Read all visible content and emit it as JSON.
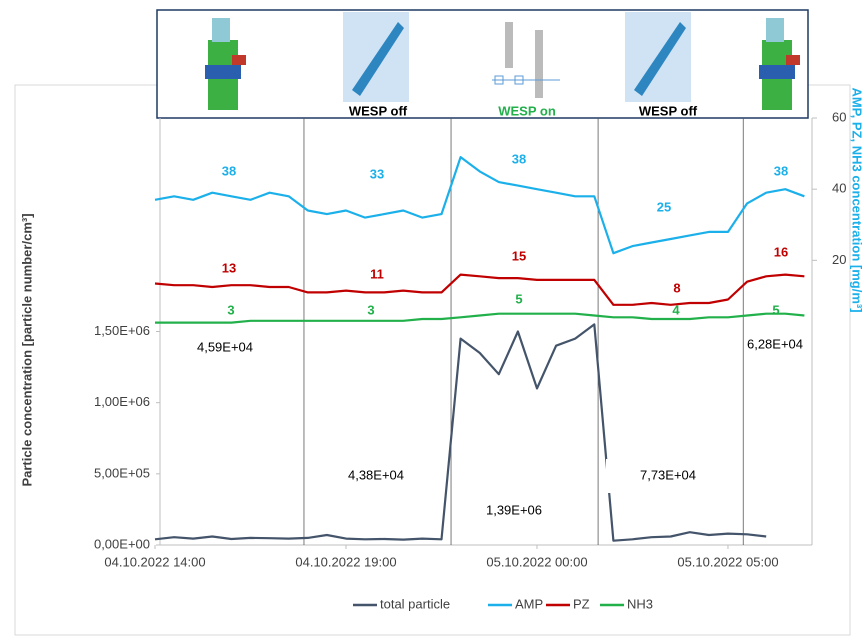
{
  "chart_data": {
    "type": "line",
    "y_label": "Particle concentration [particle number/cm³]",
    "y2_label": "AMP, PZ, NH3 concentration [mg/m³]",
    "banner_labels": [
      "WESP off",
      "WESP on",
      "WESP off"
    ],
    "x": [
      14,
      14.5,
      15,
      15.5,
      16,
      16.5,
      17,
      17.5,
      18,
      18.5,
      19,
      19.5,
      20,
      20.5,
      21,
      21.5,
      22,
      22.5,
      23,
      23.5,
      24,
      24.5,
      25,
      25.5,
      26,
      26.5,
      27,
      27.5,
      28,
      28.5,
      29,
      29.5,
      30,
      30.5,
      31
    ],
    "xlim": [
      14,
      31.2
    ],
    "xticks": [
      {
        "value": 14,
        "label": "04.10.2022 14:00"
      },
      {
        "value": 19,
        "label": "04.10.2022 19:00"
      },
      {
        "value": 24,
        "label": "05.10.2022 00:00"
      },
      {
        "value": 29,
        "label": "05.10.2022 05:00"
      }
    ],
    "phase_boundaries": [
      17.9,
      21.75,
      25.6,
      29.4
    ],
    "ylim": [
      0,
      3000000
    ],
    "yticks": [
      {
        "value": 0,
        "label": "0,00E+00"
      },
      {
        "value": 500000,
        "label": "5,00E+05"
      },
      {
        "value": 1000000,
        "label": "1,00E+06"
      },
      {
        "value": 1500000,
        "label": "1,50E+06"
      }
    ],
    "y2lim": [
      -60,
      60
    ],
    "y2ticks": [
      20,
      40,
      60
    ],
    "series": [
      {
        "name": "total particle",
        "color": "#44546a",
        "values": [
          40000,
          55000,
          45000,
          60000,
          42000,
          50000,
          48000,
          45000,
          50000,
          70000,
          45000,
          40000,
          42000,
          38000,
          45000,
          40000,
          1450000,
          1350000,
          1200000,
          1500000,
          1100000,
          1400000,
          1450000,
          1550000,
          30000,
          40000,
          55000,
          60000,
          90000,
          70000,
          80000,
          75000,
          60000,
          null,
          null
        ]
      },
      {
        "name": "AMP",
        "color": "#1cb0ea",
        "axis": "y2",
        "values": [
          37,
          38,
          37,
          39,
          38,
          37,
          39,
          38,
          34,
          33,
          34,
          32,
          33,
          34,
          32,
          33,
          49,
          45,
          42,
          41,
          40,
          39,
          38,
          38,
          22,
          24,
          25,
          26,
          27,
          28,
          28,
          36,
          39,
          40,
          38
        ]
      },
      {
        "name": "PZ",
        "color": "#c00000",
        "axis": "y2",
        "values": [
          13.5,
          13,
          13,
          12.5,
          13,
          13,
          12.5,
          12.5,
          11,
          11,
          11.5,
          11,
          11,
          11.5,
          11,
          11,
          16,
          15.5,
          15,
          15,
          14.5,
          14.5,
          14.5,
          14.5,
          7.5,
          7.5,
          8,
          7.5,
          8,
          8,
          9,
          14,
          15.5,
          16,
          15.5
        ]
      },
      {
        "name": "NH3",
        "color": "#22b04b",
        "axis": "y2",
        "values": [
          2.5,
          2.5,
          2.5,
          2.5,
          2.5,
          3,
          3,
          3,
          3,
          3,
          3,
          3,
          3,
          3,
          3.5,
          3.5,
          4,
          4.5,
          5,
          5,
          5,
          5,
          5,
          4.5,
          4,
          4,
          3.5,
          3.5,
          3.5,
          4,
          4,
          4.5,
          5,
          5,
          4.5
        ]
      }
    ],
    "annotations": [
      "38",
      "33",
      "38",
      "25",
      "38",
      "13",
      "11",
      "15",
      "8",
      "16",
      "3",
      "3",
      "5",
      "4",
      "5",
      "4,59E+04",
      "4,38E+04",
      "1,39E+06",
      "7,73E+04",
      "6,28E+04"
    ]
  }
}
